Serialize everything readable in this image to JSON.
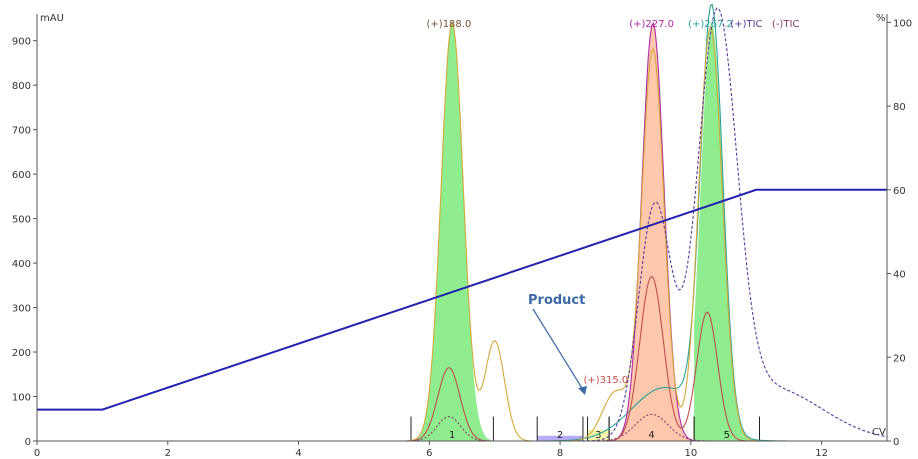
{
  "chart_data": {
    "type": "line",
    "left_unit": "mAU",
    "right_unit": "%",
    "x_unit": "CV",
    "xlim": [
      0,
      13.0
    ],
    "ylim_left": [
      0,
      960
    ],
    "ylim_right": [
      0,
      102
    ],
    "x_ticks": [
      0,
      2,
      4,
      6,
      8,
      10,
      12
    ],
    "y_left_ticks": [
      0,
      100,
      200,
      300,
      400,
      500,
      600,
      700,
      800,
      900
    ],
    "y_right_ticks": [
      0,
      20,
      40,
      60,
      80,
      100
    ],
    "annotation": "Product",
    "ms_labels": [
      {
        "text": "(+)188.0",
        "color": "#7a4f3a",
        "x": 6.3
      },
      {
        "text": "(+)227.0",
        "color": "#b02aa8",
        "x": 9.4
      },
      {
        "text": "(+)267.2",
        "color": "#2aa59a",
        "x": 10.3
      },
      {
        "text": "(+)TIC",
        "color": "#5a3aa0",
        "x": 10.85
      },
      {
        "text": "(-)TIC",
        "color": "#8a3a6a",
        "x": 11.45
      },
      {
        "text": "(+)315.0",
        "color": "#c0504d",
        "x": 8.7
      }
    ],
    "fractions": [
      {
        "label": "1",
        "start": 5.72,
        "end": 6.98,
        "color": "#33dd33"
      },
      {
        "label": "2",
        "start": 7.65,
        "end": 8.35,
        "color": "#7b68ee"
      },
      {
        "label": "3",
        "start": 8.42,
        "end": 8.75,
        "color": "#eeee66"
      },
      {
        "label": "4",
        "start": 8.75,
        "end": 10.05,
        "color": "#ff9966"
      },
      {
        "label": "5",
        "start": 10.05,
        "end": 11.05,
        "color": "#33dd33"
      }
    ],
    "series": [
      {
        "name": "gradient",
        "color": "#2323b0",
        "axis": "right",
        "x": [
          0,
          1.0,
          11.0,
          13.0
        ],
        "y": [
          7.5,
          7.5,
          60,
          60
        ]
      }
    ],
    "peaks": [
      {
        "center": 6.35,
        "height": 945,
        "width": 0.17
      },
      {
        "center": 9.42,
        "height": 940,
        "width": 0.17
      },
      {
        "center": 10.32,
        "height": 940,
        "width": 0.17
      }
    ],
    "gridlines": false
  }
}
